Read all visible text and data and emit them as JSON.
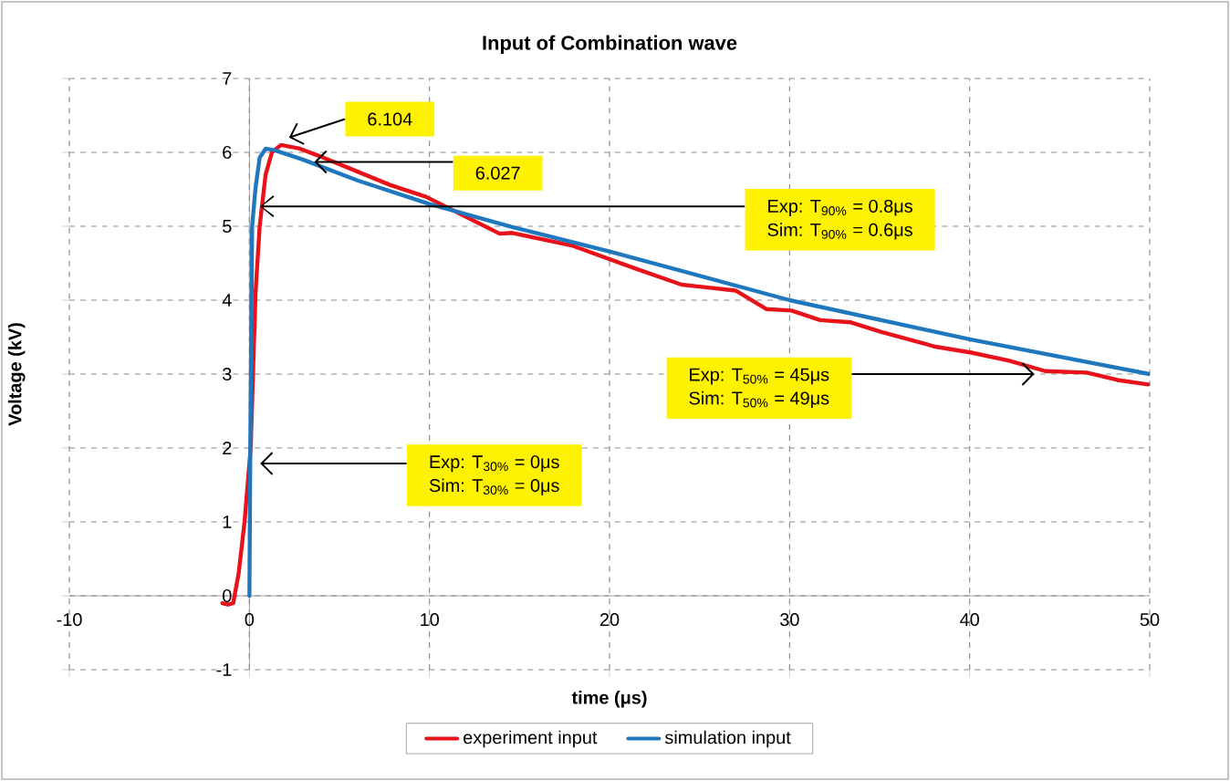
{
  "chart_data": {
    "type": "line",
    "title": "Input of Combination wave",
    "xlabel": "time (μs)",
    "ylabel": "Voltage (kV)",
    "xlim": [
      -10,
      50
    ],
    "ylim": [
      -1,
      7
    ],
    "xticks": [
      -10,
      0,
      10,
      20,
      30,
      40,
      50
    ],
    "yticks": [
      -1,
      0,
      1,
      2,
      3,
      4,
      5,
      6,
      7
    ],
    "grid": true,
    "legend": "bottom",
    "marker": "none",
    "line_style": "solid",
    "series": [
      {
        "name": "experiment input",
        "color": "#e8121b",
        "x": [
          -1.5,
          -1.2,
          -0.9,
          -0.6,
          -0.27,
          0.07,
          0.34,
          0.57,
          0.9,
          1.25,
          1.75,
          2.8,
          4.1,
          6.1,
          7.8,
          9.8,
          11.2,
          13.9,
          14.6,
          17.9,
          21.3,
          24.0,
          27.0,
          28.7,
          30.1,
          31.7,
          33.4,
          35.1,
          38.1,
          40.1,
          42.2,
          44.2,
          46.5,
          48.2,
          49.9
        ],
        "values": [
          -0.1,
          -0.12,
          -0.1,
          0.3,
          1.0,
          2.0,
          4.1,
          5.0,
          5.7,
          6.0,
          6.1,
          6.05,
          5.93,
          5.73,
          5.56,
          5.4,
          5.23,
          4.9,
          4.91,
          4.74,
          4.44,
          4.21,
          4.13,
          3.88,
          3.86,
          3.73,
          3.7,
          3.57,
          3.37,
          3.29,
          3.18,
          3.04,
          3.02,
          2.92,
          2.86
        ]
      },
      {
        "name": "simulation input",
        "color": "#1f78be",
        "x": [
          0,
          0.05,
          0.15,
          0.34,
          0.57,
          0.9,
          1.4,
          3.0,
          6.0,
          10.0,
          14.6,
          20.0,
          30.0,
          40.0,
          50.0
        ],
        "values": [
          0,
          2.0,
          5.0,
          5.52,
          5.93,
          6.05,
          6.03,
          5.9,
          5.62,
          5.3,
          4.99,
          4.66,
          4.0,
          3.47,
          3.0
        ]
      }
    ],
    "annotations": [
      "6.104",
      {
        "text": "6.027",
        "x": 3.6,
        "y": 5.87
      },
      "Exp: T$_{90%}$ = 0.8μs",
      "Sim: T$_{90%}$ = 0.6μs",
      "Exp: T$_{30%}$ = 0μs",
      "Sim: T$_{30%}$ = 0μs",
      {
        "text": "Exp: T$_{50%}$ = 45μs",
        "x": 43.6,
        "y": 3.0
      },
      "Sim: T$_{50%}$ = 49μs"
    ]
  }
}
